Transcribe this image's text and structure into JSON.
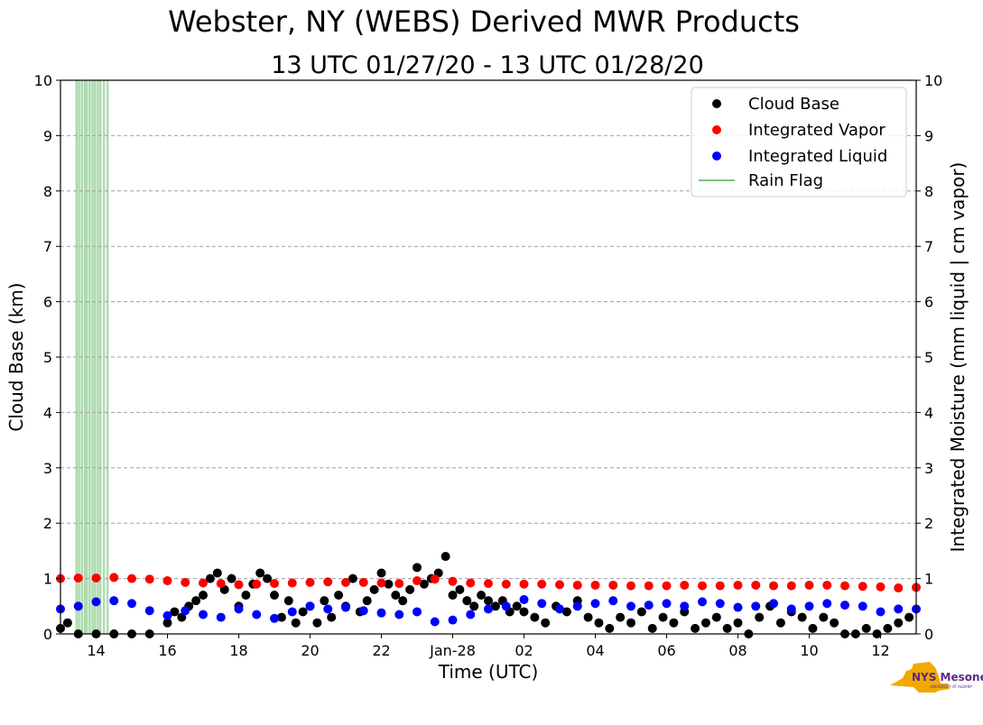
{
  "chart_data": {
    "type": "scatter",
    "title": "Webster, NY (WEBS) Derived MWR Products",
    "subtitle": "13 UTC 01/27/20 - 13 UTC 01/28/20",
    "xlabel": "Time (UTC)",
    "ylabel": "Cloud Base (km)",
    "ylabel_right": "Integrated Moisture (mm liquid | cm vapor)",
    "xlim": [
      13,
      37
    ],
    "ylim": [
      0,
      10
    ],
    "x_ticks": [
      {
        "value": 14,
        "label": "14"
      },
      {
        "value": 16,
        "label": "16"
      },
      {
        "value": 18,
        "label": "18"
      },
      {
        "value": 20,
        "label": "20"
      },
      {
        "value": 22,
        "label": "22"
      },
      {
        "value": 24,
        "label": "Jan-28"
      },
      {
        "value": 26,
        "label": "02"
      },
      {
        "value": 28,
        "label": "04"
      },
      {
        "value": 30,
        "label": "06"
      },
      {
        "value": 32,
        "label": "08"
      },
      {
        "value": 34,
        "label": "10"
      },
      {
        "value": 36,
        "label": "12"
      }
    ],
    "y_ticks": [
      0,
      1,
      2,
      3,
      4,
      5,
      6,
      7,
      8,
      9,
      10
    ],
    "grid": "horizontal dashed",
    "legend_position": "top-right",
    "series": [
      {
        "name": "Cloud Base",
        "kind": "scatter",
        "color": "#000000",
        "x": [
          13.0,
          13.2,
          13.5,
          14.0,
          14.5,
          15.0,
          15.5,
          16.0,
          16.2,
          16.4,
          16.6,
          16.8,
          17.0,
          17.2,
          17.4,
          17.6,
          17.8,
          18.0,
          18.2,
          18.4,
          18.6,
          18.8,
          19.0,
          19.2,
          19.4,
          19.6,
          19.8,
          20.0,
          20.2,
          20.4,
          20.6,
          20.8,
          21.0,
          21.2,
          21.4,
          21.6,
          21.8,
          22.0,
          22.2,
          22.4,
          22.6,
          22.8,
          23.0,
          23.2,
          23.4,
          23.6,
          23.8,
          24.0,
          24.2,
          24.4,
          24.6,
          24.8,
          25.0,
          25.2,
          25.4,
          25.6,
          25.8,
          26.0,
          26.3,
          26.6,
          26.9,
          27.2,
          27.5,
          27.8,
          28.1,
          28.4,
          28.7,
          29.0,
          29.3,
          29.6,
          29.9,
          30.2,
          30.5,
          30.8,
          31.1,
          31.4,
          31.7,
          32.0,
          32.3,
          32.6,
          32.9,
          33.2,
          33.5,
          33.8,
          34.1,
          34.4,
          34.7,
          35.0,
          35.3,
          35.6,
          35.9,
          36.2,
          36.5,
          36.8
        ],
        "y": [
          0.1,
          0.2,
          0.0,
          0.0,
          0.0,
          0.0,
          0.0,
          0.2,
          0.4,
          0.3,
          0.5,
          0.6,
          0.7,
          1.0,
          1.1,
          0.8,
          1.0,
          0.5,
          0.7,
          0.9,
          1.1,
          1.0,
          0.7,
          0.3,
          0.6,
          0.2,
          0.4,
          0.5,
          0.2,
          0.6,
          0.3,
          0.7,
          0.5,
          1.0,
          0.4,
          0.6,
          0.8,
          1.1,
          0.9,
          0.7,
          0.6,
          0.8,
          1.2,
          0.9,
          1.0,
          1.1,
          1.4,
          0.7,
          0.8,
          0.6,
          0.5,
          0.7,
          0.6,
          0.5,
          0.6,
          0.4,
          0.5,
          0.4,
          0.3,
          0.2,
          0.5,
          0.4,
          0.6,
          0.3,
          0.2,
          0.1,
          0.3,
          0.2,
          0.4,
          0.1,
          0.3,
          0.2,
          0.4,
          0.1,
          0.2,
          0.3,
          0.1,
          0.2,
          0.0,
          0.3,
          0.5,
          0.2,
          0.4,
          0.3,
          0.1,
          0.3,
          0.2,
          0.0,
          0.0,
          0.1,
          0.0,
          0.1,
          0.2,
          0.3
        ]
      },
      {
        "name": "Integrated Vapor",
        "kind": "scatter",
        "color": "#ff0000",
        "x": [
          13.0,
          13.5,
          14.0,
          14.5,
          15.0,
          15.5,
          16.0,
          16.5,
          17.0,
          17.5,
          18.0,
          18.5,
          19.0,
          19.5,
          20.0,
          20.5,
          21.0,
          21.5,
          22.0,
          22.5,
          23.0,
          23.5,
          24.0,
          24.5,
          25.0,
          25.5,
          26.0,
          26.5,
          27.0,
          27.5,
          28.0,
          28.5,
          29.0,
          29.5,
          30.0,
          30.5,
          31.0,
          31.5,
          32.0,
          32.5,
          33.0,
          33.5,
          34.0,
          34.5,
          35.0,
          35.5,
          36.0,
          36.5,
          37.0
        ],
        "y": [
          1.0,
          1.01,
          1.01,
          1.02,
          1.0,
          0.99,
          0.96,
          0.93,
          0.92,
          0.91,
          0.89,
          0.9,
          0.91,
          0.92,
          0.93,
          0.94,
          0.93,
          0.93,
          0.92,
          0.91,
          0.96,
          0.99,
          0.95,
          0.92,
          0.91,
          0.9,
          0.9,
          0.9,
          0.89,
          0.88,
          0.88,
          0.88,
          0.87,
          0.87,
          0.87,
          0.88,
          0.87,
          0.87,
          0.88,
          0.88,
          0.87,
          0.87,
          0.88,
          0.88,
          0.87,
          0.86,
          0.85,
          0.83,
          0.84
        ]
      },
      {
        "name": "Integrated Liquid",
        "kind": "scatter",
        "color": "#0000ff",
        "x": [
          13.0,
          13.5,
          14.0,
          14.5,
          15.0,
          15.5,
          16.0,
          16.5,
          17.0,
          17.5,
          18.0,
          18.5,
          19.0,
          19.5,
          20.0,
          20.5,
          21.0,
          21.5,
          22.0,
          22.5,
          23.0,
          23.5,
          24.0,
          24.5,
          25.0,
          25.5,
          26.0,
          26.5,
          27.0,
          27.5,
          28.0,
          28.5,
          29.0,
          29.5,
          30.0,
          30.5,
          31.0,
          31.5,
          32.0,
          32.5,
          33.0,
          33.5,
          34.0,
          34.5,
          35.0,
          35.5,
          36.0,
          36.5,
          37.0
        ],
        "y": [
          0.45,
          0.5,
          0.58,
          0.6,
          0.55,
          0.42,
          0.33,
          0.42,
          0.35,
          0.3,
          0.45,
          0.35,
          0.28,
          0.4,
          0.5,
          0.45,
          0.48,
          0.42,
          0.38,
          0.35,
          0.4,
          0.22,
          0.25,
          0.35,
          0.45,
          0.5,
          0.62,
          0.55,
          0.45,
          0.5,
          0.55,
          0.6,
          0.5,
          0.52,
          0.55,
          0.5,
          0.58,
          0.55,
          0.48,
          0.5,
          0.55,
          0.45,
          0.5,
          0.55,
          0.52,
          0.5,
          0.4,
          0.45,
          0.45
        ]
      }
    ],
    "rain_flag": {
      "name": "Rain Flag",
      "color": "#4caf50",
      "x": [
        13.45,
        13.52,
        13.6,
        13.68,
        13.74,
        13.82,
        13.9,
        13.97,
        14.05,
        14.12,
        14.22,
        14.32
      ]
    },
    "legend": [
      "Cloud Base",
      "Integrated Vapor",
      "Integrated Liquid",
      "Rain Flag"
    ]
  },
  "logo": {
    "text": "NYS Mesonet",
    "subtext": "UNIVERSITY AT ALBANY"
  }
}
